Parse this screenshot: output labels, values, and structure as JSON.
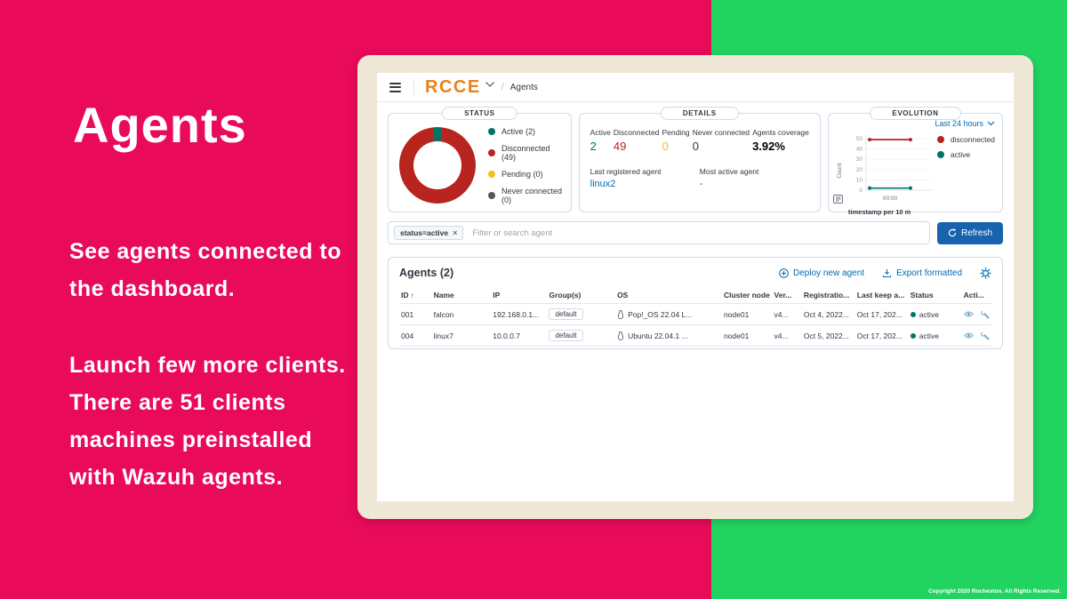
{
  "slide": {
    "title": "Agents",
    "paragraph1_lines": [
      "See agents connected to",
      "the dashboard."
    ],
    "paragraph2_lines": [
      "Launch few more clients.",
      "There are 51 clients",
      "machines preinstalled",
      "with Wazuh agents."
    ],
    "footer": "Copyright 2020 Rocheston. All Rights Reserved.",
    "colors": {
      "left_bg": "#E90A5A",
      "right_bg": "#21D45F",
      "card_frame": "#EFE8D6"
    }
  },
  "app": {
    "brand": "RCCE",
    "brand_color": "#E8831C",
    "breadcrumb_separator": "/",
    "breadcrumb": "Agents"
  },
  "status_panel": {
    "title": "STATUS",
    "legend": [
      {
        "label": "Active (2)",
        "color": "#00756B"
      },
      {
        "label": "Disconnected (49)",
        "color": "#B8241E"
      },
      {
        "label": "Pending (0)",
        "color": "#F0C020"
      },
      {
        "label": "Never connected (0)",
        "color": "#53565F"
      }
    ]
  },
  "details_panel": {
    "title": "DETAILS",
    "stats": [
      {
        "label": "Active",
        "value": "2",
        "color": "#00756B"
      },
      {
        "label": "Disconnected",
        "value": "49",
        "color": "#B8241E"
      },
      {
        "label": "Pending",
        "value": "0",
        "color": "#F0C020"
      },
      {
        "label": "Never connected",
        "value": "0",
        "color": "#343741"
      },
      {
        "label": "Agents coverage",
        "value": "3.92%",
        "color": "#000000"
      }
    ],
    "last_registered_label": "Last registered agent",
    "last_registered_value": "linux2",
    "most_active_label": "Most active agent",
    "most_active_value": "-",
    "link_color": "#006BB4"
  },
  "evolution_panel": {
    "title": "EVOLUTION",
    "range_label": "Last 24 hours",
    "legend": [
      {
        "label": "disconnected",
        "color": "#B8241E"
      },
      {
        "label": "active",
        "color": "#00756B"
      }
    ],
    "ylabel": "Count",
    "xlabel": "timestamp per 10 m"
  },
  "chart_data": [
    {
      "type": "pie",
      "title": "STATUS",
      "labels": [
        "Active",
        "Disconnected",
        "Pending",
        "Never connected"
      ],
      "values": [
        2,
        49,
        0,
        0
      ],
      "colors": [
        "#00756B",
        "#B8241E",
        "#F0C020",
        "#53565F"
      ],
      "donut": true
    },
    {
      "type": "line",
      "title": "EVOLUTION",
      "xlabel": "timestamp per 10 m",
      "ylabel": "Count",
      "ylim": [
        0,
        50
      ],
      "yticks": [
        0,
        10,
        20,
        30,
        40,
        50
      ],
      "xticks": [
        "00:00"
      ],
      "legend_position": "right",
      "series": [
        {
          "name": "disconnected",
          "color": "#B8241E",
          "values": [
            49,
            49,
            49
          ]
        },
        {
          "name": "active",
          "color": "#00756B",
          "values": [
            2,
            2,
            2
          ]
        }
      ]
    }
  ],
  "search": {
    "chip": "status=active",
    "chip_close": "×",
    "placeholder": "Filter or search agent",
    "refresh_label": "Refresh"
  },
  "table": {
    "title": "Agents (2)",
    "deploy_label": "Deploy new agent",
    "export_label": "Export formatted",
    "sort_glyph": "↑",
    "columns": [
      "ID",
      "Name",
      "IP",
      "Group(s)",
      "OS",
      "Cluster node",
      "Ver...",
      "Registratio...",
      "Last keep a...",
      "Status",
      "Acti..."
    ],
    "rows": [
      {
        "id": "001",
        "name": "falcon",
        "ip": "192.168.0.1...",
        "group": "default",
        "os": "Pop!_OS 22.04 L...",
        "cluster": "node01",
        "version": "v4...",
        "registration": "Oct 4, 2022...",
        "last_keep_alive": "Oct 17, 202...",
        "status": "active",
        "status_color": "#00756B"
      },
      {
        "id": "004",
        "name": "linux7",
        "ip": "10.0.0.7",
        "group": "default",
        "os": "Ubuntu 22.04.1 ...",
        "cluster": "node01",
        "version": "v4...",
        "registration": "Oct 5, 2022...",
        "last_keep_alive": "Oct 17, 202...",
        "status": "active",
        "status_color": "#00756B"
      }
    ]
  },
  "icons": {
    "hamburger": "menu-bars",
    "chevron_down": "v-shape",
    "plus_circle": "⊕",
    "export_download": "⤓",
    "gear": "⚙",
    "refresh": "⟳",
    "eye": "view",
    "wrench": "configure",
    "penguin": "linux-os",
    "inspect": "chart-data-grid"
  }
}
